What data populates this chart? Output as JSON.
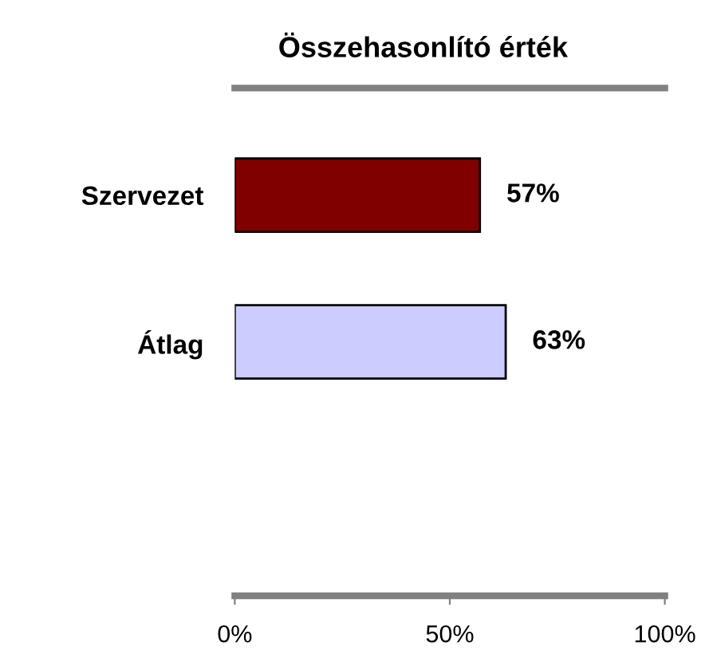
{
  "chart_data": {
    "type": "bar",
    "orientation": "horizontal",
    "title": "Összehasonlító érték",
    "categories": [
      "Szervezet",
      "Átlag"
    ],
    "values": [
      57,
      63
    ],
    "colors": [
      "#800000",
      "#ccccff"
    ],
    "value_labels": [
      "57%",
      "63%"
    ],
    "xlim": [
      0,
      100
    ],
    "xticks": [
      {
        "value": 0,
        "label": "0%"
      },
      {
        "value": 50,
        "label": "50%"
      },
      {
        "value": 100,
        "label": "100%"
      }
    ],
    "grid": false,
    "legend": false
  }
}
